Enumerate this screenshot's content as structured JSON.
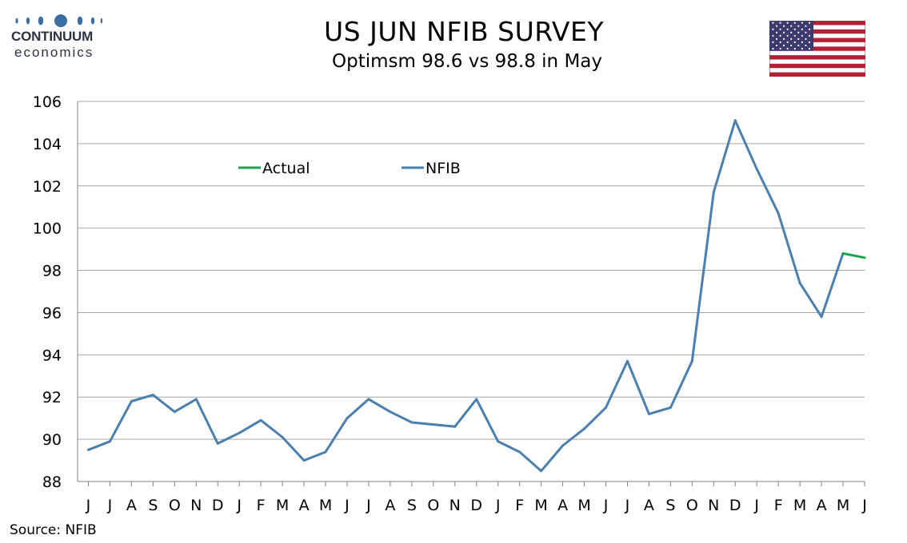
{
  "logo": {
    "name": "CONTINUUM",
    "sub": "economics"
  },
  "flag_icon": "us-flag-icon",
  "colors": {
    "nfib": "#4a7fae",
    "actual": "#1aa64a",
    "grid": "#a6a6a6",
    "axis": "#808080"
  },
  "source": "Source: NFIB",
  "chart_data": {
    "type": "line",
    "title": "US JUN NFIB SURVEY",
    "subtitle": "Optimsm 98.6 vs 98.8 in May",
    "categories": [
      "J",
      "J",
      "A",
      "S",
      "O",
      "N",
      "D",
      "J",
      "F",
      "M",
      "A",
      "M",
      "J",
      "J",
      "A",
      "S",
      "O",
      "N",
      "D",
      "J",
      "F",
      "M",
      "A",
      "M",
      "J",
      "J",
      "A",
      "S",
      "O",
      "N",
      "D",
      "J",
      "F",
      "M",
      "A",
      "M",
      "J"
    ],
    "series": [
      {
        "name": "Actual",
        "color": "#1aa64a",
        "values": [
          null,
          null,
          null,
          null,
          null,
          null,
          null,
          null,
          null,
          null,
          null,
          null,
          null,
          null,
          null,
          null,
          null,
          null,
          null,
          null,
          null,
          null,
          null,
          null,
          null,
          null,
          null,
          null,
          null,
          null,
          null,
          null,
          null,
          null,
          null,
          98.8,
          98.6
        ]
      },
      {
        "name": "NFIB",
        "color": "#4a7fae",
        "values": [
          89.5,
          89.9,
          91.8,
          92.1,
          91.3,
          91.9,
          89.8,
          90.3,
          90.9,
          90.1,
          89.0,
          89.4,
          91.0,
          91.9,
          91.3,
          90.8,
          90.7,
          90.6,
          91.9,
          89.9,
          89.4,
          88.5,
          89.7,
          90.5,
          91.5,
          93.7,
          91.2,
          91.5,
          93.7,
          101.7,
          105.1,
          102.8,
          100.7,
          97.4,
          95.8,
          98.8,
          null
        ]
      }
    ],
    "ylim": [
      88,
      106
    ],
    "yticks": [
      88,
      90,
      92,
      94,
      96,
      98,
      100,
      102,
      104,
      106
    ],
    "grid": true,
    "legend": "top-left, inside plot"
  }
}
